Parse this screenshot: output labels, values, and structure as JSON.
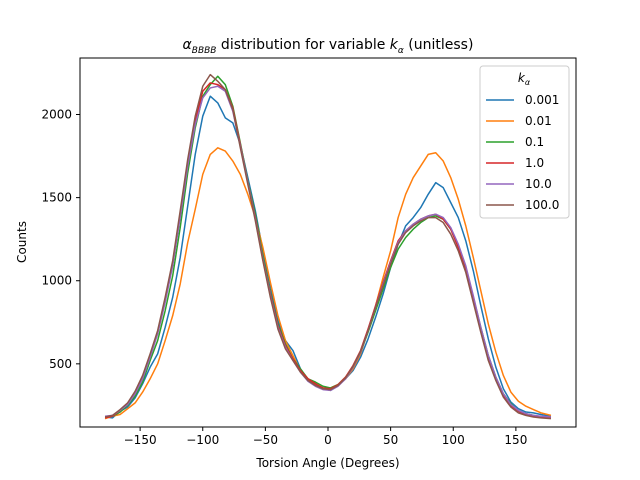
{
  "chart_data": {
    "type": "line",
    "title_main": "α",
    "title_main_sub": "BBBB",
    "title_mid": " distribution for variable ",
    "title_k": "k",
    "title_k_sub": "α",
    "title_end": " (unitless)",
    "xlabel": "Torsion Angle (Degrees)",
    "ylabel": "Counts",
    "xlim": [
      -198,
      198
    ],
    "ylim": [
      120,
      2340
    ],
    "xticks": [
      -150,
      -100,
      -50,
      0,
      50,
      100,
      150
    ],
    "xtick_labels": [
      "−150",
      "−100",
      "−50",
      "0",
      "50",
      "100",
      "150"
    ],
    "yticks": [
      500,
      1000,
      1500,
      2000
    ],
    "ytick_labels": [
      "500",
      "1000",
      "1500",
      "2000"
    ],
    "grid": false,
    "legend": {
      "placement": "upper right",
      "title": "k",
      "title_sub": "α"
    },
    "x": [
      -178,
      -172,
      -166,
      -160,
      -154,
      -148,
      -142,
      -136,
      -130,
      -124,
      -118,
      -112,
      -106,
      -100,
      -94,
      -88,
      -82,
      -76,
      -70,
      -64,
      -58,
      -52,
      -46,
      -40,
      -34,
      -28,
      -22,
      -16,
      -10,
      -4,
      2,
      8,
      14,
      20,
      26,
      32,
      38,
      44,
      50,
      56,
      62,
      68,
      74,
      80,
      86,
      92,
      98,
      104,
      110,
      116,
      122,
      128,
      134,
      140,
      146,
      152,
      158,
      164,
      170,
      178
    ],
    "series": [
      {
        "name": "0.001",
        "color": "#1f77b4",
        "values": [
          180,
          175,
          215,
          240,
          295,
          380,
          480,
          560,
          720,
          900,
          1140,
          1450,
          1760,
          1990,
          2110,
          2070,
          1980,
          1950,
          1820,
          1620,
          1420,
          1180,
          970,
          760,
          640,
          580,
          470,
          405,
          380,
          350,
          340,
          370,
          410,
          460,
          540,
          650,
          780,
          920,
          1080,
          1220,
          1330,
          1380,
          1440,
          1520,
          1590,
          1560,
          1470,
          1380,
          1240,
          1060,
          850,
          650,
          480,
          350,
          270,
          230,
          210,
          205,
          195,
          185
        ]
      },
      {
        "name": "0.01",
        "color": "#ff7f0e",
        "values": [
          170,
          185,
          195,
          230,
          265,
          330,
          410,
          500,
          640,
          790,
          980,
          1230,
          1430,
          1640,
          1760,
          1800,
          1780,
          1720,
          1640,
          1520,
          1380,
          1200,
          990,
          790,
          640,
          550,
          460,
          410,
          370,
          355,
          355,
          375,
          410,
          470,
          560,
          700,
          850,
          1020,
          1180,
          1380,
          1520,
          1620,
          1690,
          1760,
          1770,
          1720,
          1620,
          1490,
          1330,
          1140,
          940,
          740,
          570,
          430,
          330,
          275,
          245,
          225,
          205,
          190
        ]
      },
      {
        "name": "0.1",
        "color": "#2ca02c",
        "values": [
          180,
          185,
          210,
          250,
          305,
          390,
          520,
          640,
          820,
          1030,
          1320,
          1650,
          1920,
          2110,
          2180,
          2230,
          2180,
          2050,
          1830,
          1600,
          1400,
          1150,
          930,
          740,
          620,
          530,
          470,
          410,
          390,
          365,
          355,
          375,
          420,
          480,
          570,
          690,
          820,
          950,
          1080,
          1190,
          1260,
          1310,
          1350,
          1380,
          1390,
          1370,
          1310,
          1210,
          1080,
          900,
          720,
          550,
          420,
          320,
          260,
          215,
          200,
          190,
          180,
          175
        ]
      },
      {
        "name": "1.0",
        "color": "#d62728",
        "values": [
          175,
          185,
          220,
          260,
          320,
          420,
          550,
          690,
          890,
          1100,
          1400,
          1710,
          1960,
          2140,
          2190,
          2180,
          2150,
          2040,
          1820,
          1590,
          1380,
          1130,
          920,
          730,
          610,
          530,
          460,
          410,
          380,
          355,
          350,
          375,
          420,
          490,
          580,
          710,
          850,
          990,
          1120,
          1240,
          1300,
          1340,
          1370,
          1390,
          1400,
          1370,
          1310,
          1200,
          1060,
          880,
          700,
          530,
          410,
          310,
          250,
          215,
          195,
          185,
          180,
          175
        ]
      },
      {
        "name": "10.0",
        "color": "#9467bd",
        "values": [
          185,
          190,
          220,
          255,
          320,
          410,
          540,
          680,
          870,
          1090,
          1380,
          1690,
          1940,
          2100,
          2160,
          2170,
          2140,
          2020,
          1810,
          1590,
          1370,
          1130,
          910,
          720,
          600,
          520,
          450,
          395,
          365,
          345,
          340,
          365,
          410,
          480,
          570,
          700,
          840,
          980,
          1110,
          1230,
          1300,
          1340,
          1370,
          1390,
          1400,
          1380,
          1320,
          1220,
          1090,
          910,
          720,
          550,
          420,
          320,
          255,
          220,
          200,
          190,
          185,
          180
        ]
      },
      {
        "name": "100.0",
        "color": "#8c564b",
        "values": [
          180,
          190,
          225,
          265,
          335,
          430,
          560,
          700,
          900,
          1120,
          1420,
          1730,
          1990,
          2170,
          2240,
          2200,
          2150,
          2030,
          1800,
          1580,
          1360,
          1120,
          900,
          710,
          590,
          520,
          450,
          400,
          370,
          350,
          345,
          370,
          415,
          485,
          575,
          700,
          840,
          970,
          1100,
          1220,
          1290,
          1330,
          1360,
          1380,
          1380,
          1350,
          1280,
          1180,
          1050,
          870,
          690,
          520,
          400,
          300,
          240,
          205,
          190,
          180,
          175,
          170
        ]
      }
    ]
  }
}
